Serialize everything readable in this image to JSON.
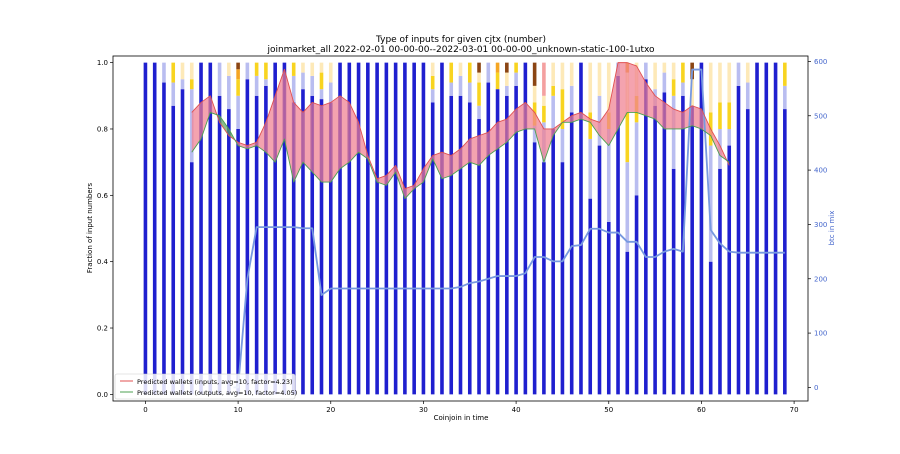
{
  "chart_data": {
    "type": "bar",
    "title": "Type of inputs for given cjtx (number)",
    "subtitle": "joinmarket_all 2022-02-01 00-00-00--2022-03-01 00-00-00_unknown-static-100-1utxo",
    "xlabel": "Coinjoin in time",
    "ylabel": "Fraction of input numbers",
    "y2label": "btc in mix",
    "xlim": [
      -3.5,
      71.5
    ],
    "ylim": [
      -0.02,
      1.02
    ],
    "y2lim": [
      -25,
      610
    ],
    "xticks": [
      0,
      10,
      20,
      30,
      40,
      50,
      60,
      70
    ],
    "yticks": [
      0.0,
      0.2,
      0.4,
      0.6,
      0.8,
      1.0
    ],
    "y2ticks": [
      0,
      100,
      200,
      300,
      400,
      500,
      600
    ],
    "colors": {
      "fresh": "#1f1fcf",
      "remix_light": "#b9bdf0",
      "yellow": "#f8d420",
      "pale_yellow": "#fde9b8",
      "orange": "#f5a623",
      "brown": "#8b4513",
      "pink": "#f4a0a0",
      "btc_line": "#7799e0",
      "inputs_line": "#e05050",
      "inputs_fill": "#f08090",
      "outputs_line": "#4ca050",
      "outputs_fill": "#5fa05f",
      "axis2": "#4466cc"
    },
    "bar_series": [
      "fresh",
      "remix_light",
      "yellow",
      "pale_yellow",
      "orange",
      "brown",
      "pink"
    ],
    "bars": [
      [
        1.0,
        0,
        0,
        0,
        0,
        0,
        0
      ],
      [
        1.0,
        0,
        0,
        0,
        0,
        0,
        0
      ],
      [
        0.94,
        0.06,
        0,
        0,
        0,
        0,
        0
      ],
      [
        0.87,
        0.07,
        0.06,
        0,
        0,
        0,
        0
      ],
      [
        0.92,
        0.03,
        0,
        0.05,
        0,
        0,
        0
      ],
      [
        0.7,
        0.22,
        0.03,
        0.05,
        0,
        0,
        0
      ],
      [
        1.0,
        0,
        0,
        0,
        0,
        0,
        0
      ],
      [
        1.0,
        0,
        0,
        0,
        0,
        0,
        0
      ],
      [
        0.9,
        0.1,
        0,
        0,
        0,
        0,
        0
      ],
      [
        0.86,
        0.1,
        0,
        0.04,
        0,
        0,
        0
      ],
      [
        0.8,
        0.1,
        0.05,
        0,
        0.03,
        0.02,
        0
      ],
      [
        0.95,
        0.05,
        0,
        0,
        0,
        0,
        0
      ],
      [
        0.9,
        0.06,
        0.04,
        0,
        0,
        0,
        0
      ],
      [
        0.93,
        0.02,
        0.05,
        0,
        0,
        0,
        0
      ],
      [
        1.0,
        0,
        0,
        0,
        0,
        0,
        0
      ],
      [
        1.0,
        0,
        0,
        0,
        0,
        0,
        0
      ],
      [
        0.88,
        0.08,
        0.04,
        0,
        0,
        0,
        0
      ],
      [
        0.92,
        0.05,
        0,
        0.03,
        0,
        0,
        0
      ],
      [
        0.9,
        0.06,
        0,
        0.04,
        0,
        0,
        0
      ],
      [
        0.89,
        0.03,
        0.05,
        0.03,
        0,
        0,
        0
      ],
      [
        0.88,
        0.06,
        0,
        0.06,
        0,
        0,
        0
      ],
      [
        1.0,
        0,
        0,
        0,
        0,
        0,
        0
      ],
      [
        1.0,
        0,
        0,
        0,
        0,
        0,
        0
      ],
      [
        1.0,
        0,
        0,
        0,
        0,
        0,
        0
      ],
      [
        1.0,
        0,
        0,
        0,
        0,
        0,
        0
      ],
      [
        1.0,
        0,
        0,
        0,
        0,
        0,
        0
      ],
      [
        1.0,
        0,
        0,
        0,
        0,
        0,
        0
      ],
      [
        1.0,
        0,
        0,
        0,
        0,
        0,
        0
      ],
      [
        1.0,
        0,
        0,
        0,
        0,
        0,
        0
      ],
      [
        1.0,
        0,
        0,
        0,
        0,
        0,
        0
      ],
      [
        1.0,
        0,
        0,
        0,
        0,
        0,
        0
      ],
      [
        0.88,
        0.04,
        0.04,
        0.04,
        0,
        0,
        0
      ],
      [
        1.0,
        0,
        0,
        0,
        0,
        0,
        0
      ],
      [
        0.9,
        0.04,
        0.06,
        0,
        0,
        0,
        0
      ],
      [
        0.9,
        0.06,
        0,
        0.04,
        0,
        0,
        0
      ],
      [
        0.88,
        0.06,
        0.06,
        0,
        0,
        0,
        0
      ],
      [
        0.83,
        0.04,
        0.07,
        0.03,
        0,
        0.03,
        0
      ],
      [
        0.94,
        0.06,
        0,
        0,
        0,
        0,
        0
      ],
      [
        0.92,
        0,
        0.05,
        0,
        0.03,
        0,
        0
      ],
      [
        0.9,
        0.03,
        0,
        0.04,
        0,
        0.03,
        0
      ],
      [
        0.93,
        0.04,
        0.03,
        0,
        0,
        0,
        0
      ],
      [
        1.0,
        0,
        0,
        0,
        0,
        0,
        0
      ],
      [
        0.76,
        0.05,
        0.07,
        0.05,
        0,
        0.07,
        0
      ],
      [
        0.7,
        0.12,
        0.05,
        0.03,
        0,
        0,
        0.1
      ],
      [
        0.8,
        0.1,
        0.03,
        0.07,
        0,
        0,
        0
      ],
      [
        0.7,
        0.1,
        0.12,
        0.08,
        0,
        0,
        0
      ],
      [
        0.85,
        0.08,
        0,
        0.07,
        0,
        0,
        0
      ],
      [
        1.0,
        0,
        0,
        0,
        0,
        0,
        0
      ],
      [
        0.59,
        0.18,
        0.08,
        0.15,
        0,
        0,
        0
      ],
      [
        0.75,
        0.15,
        0,
        0.1,
        0,
        0,
        0
      ],
      [
        0.52,
        0.28,
        0.05,
        0.15,
        0,
        0,
        0
      ],
      [
        0.96,
        0.04,
        0,
        0,
        0,
        0,
        0
      ],
      [
        0.43,
        0.27,
        0.15,
        0.12,
        0.03,
        0,
        0
      ],
      [
        0.6,
        0.22,
        0.08,
        0.1,
        0,
        0,
        0
      ],
      [
        0.95,
        0.05,
        0,
        0,
        0,
        0,
        0
      ],
      [
        0.87,
        0.05,
        0,
        0.08,
        0,
        0,
        0
      ],
      [
        0.91,
        0.06,
        0,
        0.03,
        0,
        0,
        0
      ],
      [
        0.68,
        0.22,
        0.05,
        0.05,
        0,
        0,
        0
      ],
      [
        0.9,
        0.04,
        0.06,
        0,
        0,
        0,
        0
      ],
      [
        0.87,
        0,
        0,
        0.08,
        0,
        0.05,
        0
      ],
      [
        1.0,
        0,
        0,
        0,
        0,
        0,
        0
      ],
      [
        0.4,
        0.35,
        0.1,
        0.15,
        0,
        0,
        0
      ],
      [
        0.68,
        0.12,
        0.08,
        0.12,
        0,
        0,
        0
      ],
      [
        0.75,
        0.05,
        0.08,
        0.12,
        0,
        0,
        0
      ],
      [
        0.93,
        0.07,
        0,
        0,
        0,
        0,
        0
      ],
      [
        0.86,
        0.08,
        0,
        0.06,
        0,
        0,
        0
      ],
      [
        1.0,
        0,
        0,
        0,
        0,
        0,
        0
      ],
      [
        1.0,
        0,
        0,
        0,
        0,
        0,
        0
      ],
      [
        1.0,
        0,
        0,
        0,
        0,
        0,
        0
      ],
      [
        0.86,
        0.07,
        0.07,
        0,
        0,
        0,
        0
      ]
    ],
    "btc_in_mix": {
      "x": [
        9.5,
        10,
        11,
        12,
        13,
        14,
        15,
        16,
        17,
        18,
        19,
        20,
        21,
        22,
        23,
        24,
        25,
        26,
        27,
        28,
        29,
        30,
        31,
        32,
        33,
        34,
        35,
        36,
        37,
        38,
        39,
        40,
        41,
        42,
        43,
        44,
        45,
        46,
        47,
        48,
        49,
        50,
        51,
        52,
        53,
        54,
        55,
        56,
        57,
        58,
        59,
        60,
        61,
        62,
        63,
        64,
        65,
        66,
        67,
        68,
        69
      ],
      "y": [
        0,
        0,
        200,
        295,
        295,
        295,
        295,
        295,
        293,
        293,
        170,
        182,
        182,
        182,
        182,
        182,
        182,
        182,
        182,
        182,
        182,
        182,
        182,
        182,
        182,
        185,
        192,
        195,
        200,
        205,
        205,
        205,
        210,
        240,
        240,
        232,
        232,
        260,
        262,
        292,
        292,
        285,
        285,
        268,
        268,
        240,
        240,
        250,
        255,
        250,
        585,
        585,
        290,
        265,
        250,
        248,
        248,
        248,
        248,
        248,
        248
      ]
    },
    "predicted_inputs": {
      "label": "Predicted wallets (inputs, avg=10, factor=4.23)",
      "x": [
        5,
        6,
        7,
        8,
        9,
        10,
        11,
        12,
        13,
        14,
        15,
        16,
        17,
        18,
        19,
        20,
        21,
        22,
        23,
        24,
        25,
        26,
        27,
        28,
        29,
        30,
        31,
        32,
        33,
        34,
        35,
        36,
        37,
        38,
        39,
        40,
        41,
        42,
        43,
        44,
        45,
        46,
        47,
        48,
        49,
        50,
        51,
        52,
        53,
        54,
        55,
        56,
        57,
        58,
        59,
        60,
        61,
        62,
        63
      ],
      "y": [
        0.85,
        0.88,
        0.9,
        0.82,
        0.78,
        0.76,
        0.75,
        0.76,
        0.82,
        0.9,
        0.98,
        0.88,
        0.85,
        0.88,
        0.87,
        0.88,
        0.9,
        0.88,
        0.82,
        0.72,
        0.65,
        0.66,
        0.69,
        0.62,
        0.63,
        0.68,
        0.72,
        0.73,
        0.72,
        0.74,
        0.77,
        0.78,
        0.79,
        0.82,
        0.83,
        0.86,
        0.88,
        0.85,
        0.8,
        0.8,
        0.82,
        0.84,
        0.85,
        0.83,
        0.82,
        0.86,
        1.0,
        1.0,
        0.99,
        0.94,
        0.9,
        0.88,
        0.86,
        0.85,
        0.87,
        0.86,
        0.8,
        0.75,
        0.69
      ]
    },
    "predicted_outputs": {
      "label": "Predicted wallets (outputs, avg=10, factor=4.05)",
      "x": [
        5,
        6,
        7,
        8,
        9,
        10,
        11,
        12,
        13,
        14,
        15,
        16,
        17,
        18,
        19,
        20,
        21,
        22,
        23,
        24,
        25,
        26,
        27,
        28,
        29,
        30,
        31,
        32,
        33,
        34,
        35,
        36,
        37,
        38,
        39,
        40,
        41,
        42,
        43,
        44,
        45,
        46,
        47,
        48,
        49,
        50,
        51,
        52,
        53,
        54,
        55,
        56,
        57,
        58,
        59,
        60,
        61,
        62,
        63
      ],
      "y": [
        0.73,
        0.77,
        0.85,
        0.84,
        0.8,
        0.75,
        0.74,
        0.75,
        0.73,
        0.7,
        0.77,
        0.64,
        0.7,
        0.67,
        0.64,
        0.64,
        0.68,
        0.7,
        0.73,
        0.71,
        0.64,
        0.63,
        0.67,
        0.59,
        0.62,
        0.64,
        0.71,
        0.65,
        0.66,
        0.68,
        0.7,
        0.69,
        0.72,
        0.74,
        0.76,
        0.79,
        0.8,
        0.8,
        0.7,
        0.78,
        0.82,
        0.82,
        0.83,
        0.82,
        0.78,
        0.75,
        0.8,
        0.85,
        0.85,
        0.84,
        0.83,
        0.8,
        0.8,
        0.8,
        0.81,
        0.8,
        0.78,
        0.72,
        0.7
      ]
    },
    "legend_position": "lower-left"
  }
}
